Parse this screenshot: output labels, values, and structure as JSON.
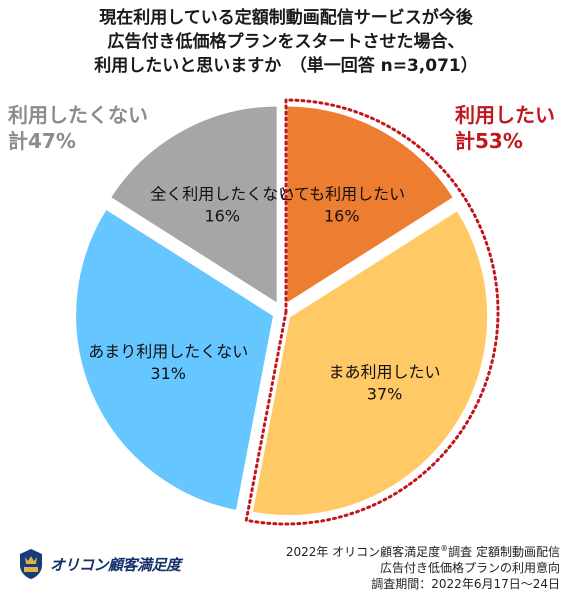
{
  "title_lines": [
    "現在利用している定額制動画配信サービスが今後",
    "広告付き低価格プランをスタートさせた場合、",
    "利用したいと思いますか　（単一回答  n=3,071）"
  ],
  "groups": {
    "negative": {
      "label": "利用したくない",
      "total": "計47%",
      "color": "#8c8c8c"
    },
    "positive": {
      "label": "利用したい",
      "total": "計53%",
      "color": "#c0171c"
    }
  },
  "chart_data": {
    "type": "pie",
    "title": "現在利用している定額制動画配信サービスが今後広告付き低価格プランをスタートさせた場合、利用したいと思いますか",
    "n": "n=3,071",
    "slices": [
      {
        "label": "とても利用したい",
        "value": 16,
        "display": "16%",
        "color": "#ed7d31"
      },
      {
        "label": "まあ利用したい",
        "value": 37,
        "display": "37%",
        "color": "#ffc966"
      },
      {
        "label": "あまり利用したくない",
        "value": 31,
        "display": "31%",
        "color": "#66c6ff"
      },
      {
        "label": "全く利用したくない",
        "value": 16,
        "display": "16%",
        "color": "#a6a6a6"
      }
    ],
    "start": "12 o'clock",
    "direction": "clockwise"
  },
  "logo": {
    "text": "オリコン顧客満足度",
    "icon": "oricon-crest-icon"
  },
  "source": {
    "line1_prefix": "2022年 オリコン顧客満足度",
    "line1_mark": "®",
    "line1_suffix": "調査  定額制動画配信",
    "line2": "広告付き低価格プランの利用意向",
    "line3": "調査期間：2022年6月17日～24日"
  }
}
